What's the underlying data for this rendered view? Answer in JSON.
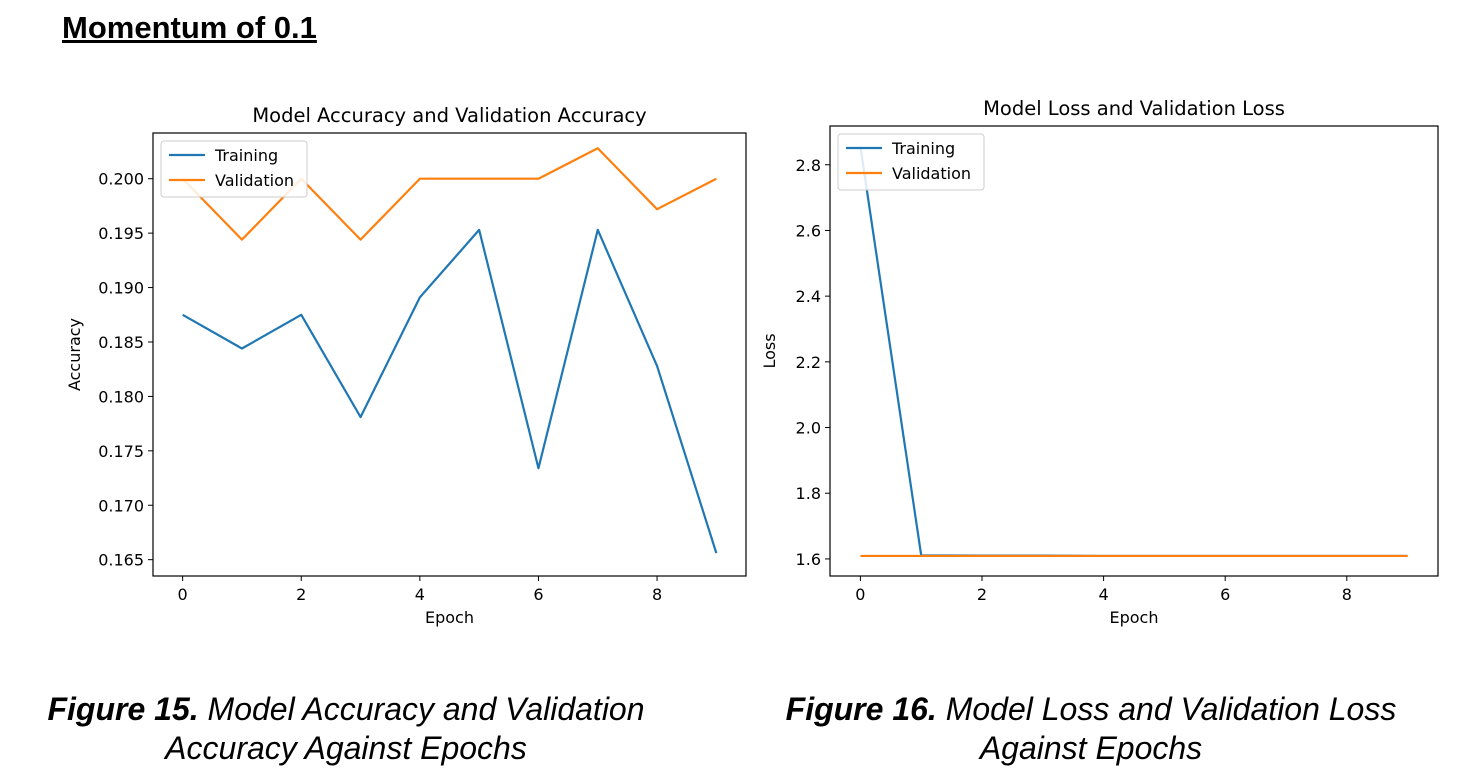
{
  "heading": "Momentum of 0.1",
  "captions": [
    {
      "number": "Figure 15.",
      "line1_rest": "Model Accuracy and Validation",
      "line2": "Accuracy Against Epochs"
    },
    {
      "number": "Figure 16.",
      "line1_rest": "Model Loss and Validation Loss",
      "line2": "Against Epochs"
    }
  ],
  "colors": {
    "training": "#1f77b4",
    "validation": "#ff7f0e"
  },
  "chart_data": [
    {
      "type": "line",
      "title": "Model Accuracy and Validation Accuracy",
      "xlabel": "Epoch",
      "ylabel": "Accuracy",
      "xlim": [
        -0.5,
        9.5
      ],
      "ylim": [
        0.1635,
        0.2042
      ],
      "xticks": [
        0,
        2,
        4,
        6,
        8
      ],
      "yticks": [
        0.165,
        0.17,
        0.175,
        0.18,
        0.185,
        0.19,
        0.195,
        0.2
      ],
      "ytick_labels": [
        "0.165",
        "0.170",
        "0.175",
        "0.180",
        "0.185",
        "0.190",
        "0.195",
        "0.200"
      ],
      "legend_position": "upper-left",
      "grid": false,
      "x": [
        0,
        1,
        2,
        3,
        4,
        5,
        6,
        7,
        8,
        9
      ],
      "series": [
        {
          "name": "Training",
          "color": "#1f77b4",
          "values": [
            0.1875,
            0.1844,
            0.1875,
            0.1781,
            0.1891,
            0.1953,
            0.1734,
            0.1953,
            0.1828,
            0.1656
          ]
        },
        {
          "name": "Validation",
          "color": "#ff7f0e",
          "values": [
            0.2,
            0.1944,
            0.2,
            0.1944,
            0.2,
            0.2,
            0.2,
            0.2028,
            0.1972,
            0.2
          ]
        }
      ]
    },
    {
      "type": "line",
      "title": "Model Loss and Validation Loss",
      "xlabel": "Epoch",
      "ylabel": "Loss",
      "xlim": [
        -0.5,
        9.5
      ],
      "ylim": [
        1.548,
        2.918
      ],
      "xticks": [
        0,
        2,
        4,
        6,
        8
      ],
      "yticks": [
        1.6,
        1.8,
        2.0,
        2.2,
        2.4,
        2.6,
        2.8
      ],
      "ytick_labels": [
        "1.6",
        "1.8",
        "2.0",
        "2.2",
        "2.4",
        "2.6",
        "2.8"
      ],
      "legend_position": "upper-left",
      "grid": false,
      "x": [
        0,
        1,
        2,
        3,
        4,
        5,
        6,
        7,
        8,
        9
      ],
      "series": [
        {
          "name": "Training",
          "color": "#1f77b4",
          "values": [
            2.855,
            1.611,
            1.61,
            1.61,
            1.609,
            1.609,
            1.609,
            1.609,
            1.609,
            1.609
          ]
        },
        {
          "name": "Validation",
          "color": "#ff7f0e",
          "values": [
            1.609,
            1.609,
            1.609,
            1.609,
            1.609,
            1.609,
            1.609,
            1.609,
            1.609,
            1.609
          ]
        }
      ]
    }
  ]
}
